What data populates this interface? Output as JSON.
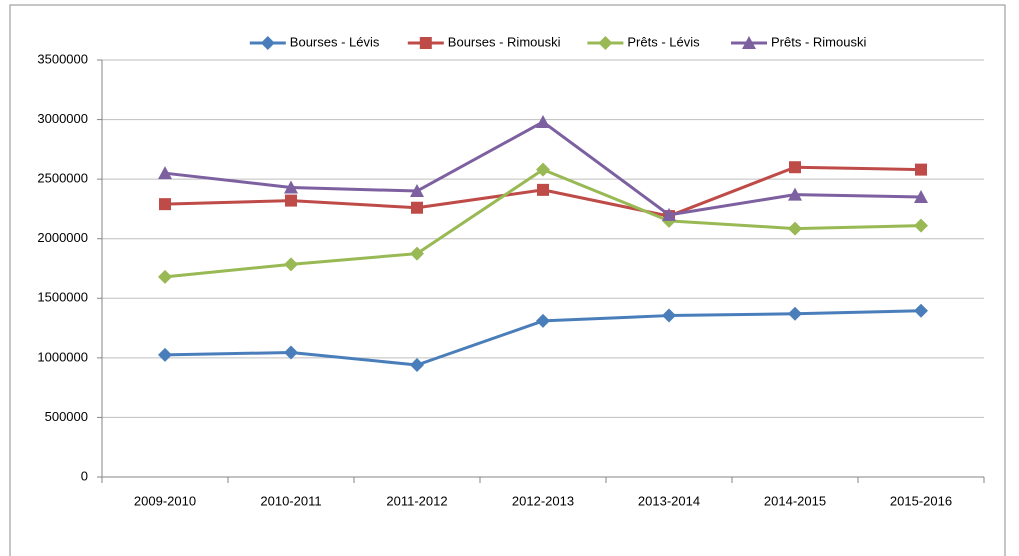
{
  "chart_data": {
    "type": "line",
    "categories": [
      "2009-2010",
      "2010-2011",
      "2011-2012",
      "2012-2013",
      "2013-2014",
      "2014-2015",
      "2015-2016"
    ],
    "series": [
      {
        "name": "Bourses - Lévis",
        "color": "#4a7ebb",
        "marker": "diamond",
        "values": [
          1025000,
          1045000,
          940000,
          1310000,
          1355000,
          1370000,
          1395000
        ]
      },
      {
        "name": "Bourses - Rimouski",
        "color": "#be4b48",
        "marker": "square",
        "values": [
          2290000,
          2320000,
          2260000,
          2410000,
          2190000,
          2600000,
          2580000
        ]
      },
      {
        "name": "Prêts - Lévis",
        "color": "#98b954",
        "marker": "diamond",
        "values": [
          1680000,
          1785000,
          1875000,
          2580000,
          2150000,
          2085000,
          2110000
        ]
      },
      {
        "name": "Prêts - Rimouski",
        "color": "#7d60a0",
        "marker": "triangle",
        "values": [
          2550000,
          2430000,
          2400000,
          2980000,
          2200000,
          2370000,
          2350000
        ]
      }
    ],
    "ylim": [
      0,
      3500000
    ],
    "yticks": [
      0,
      500000,
      1000000,
      1500000,
      2000000,
      2500000,
      3000000,
      3500000
    ],
    "grid": true,
    "legend": "top"
  }
}
